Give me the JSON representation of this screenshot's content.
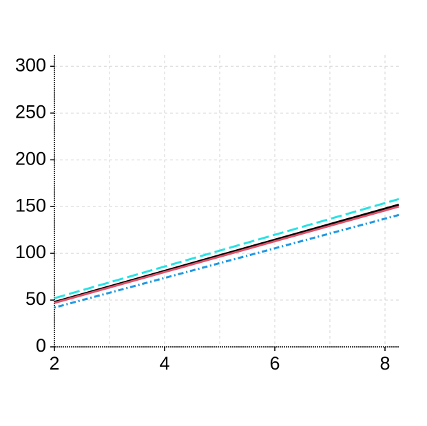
{
  "chart_data": {
    "type": "line",
    "x": [
      2,
      8.25
    ],
    "series": [
      {
        "color": "#000000",
        "dash": "solid",
        "values": [
          48,
          152
        ]
      },
      {
        "color": "#df536b",
        "dash": "solid",
        "values": [
          47,
          150
        ]
      },
      {
        "color": "#61d04f",
        "dash": "dotted",
        "values": [
          42,
          141
        ]
      },
      {
        "color": "#2297e6",
        "dash": "dotdash",
        "values": [
          42,
          141
        ]
      },
      {
        "color": "#28e2e5",
        "dash": "longdash",
        "values": [
          52,
          158
        ]
      }
    ],
    "xlim": [
      2,
      8.25
    ],
    "ylim": [
      0,
      312
    ],
    "xticks": [
      2,
      4,
      6,
      8
    ],
    "xminor": [
      3,
      5,
      7
    ],
    "yticks": [
      0,
      50,
      100,
      150,
      200,
      250,
      300
    ],
    "grid": true
  }
}
